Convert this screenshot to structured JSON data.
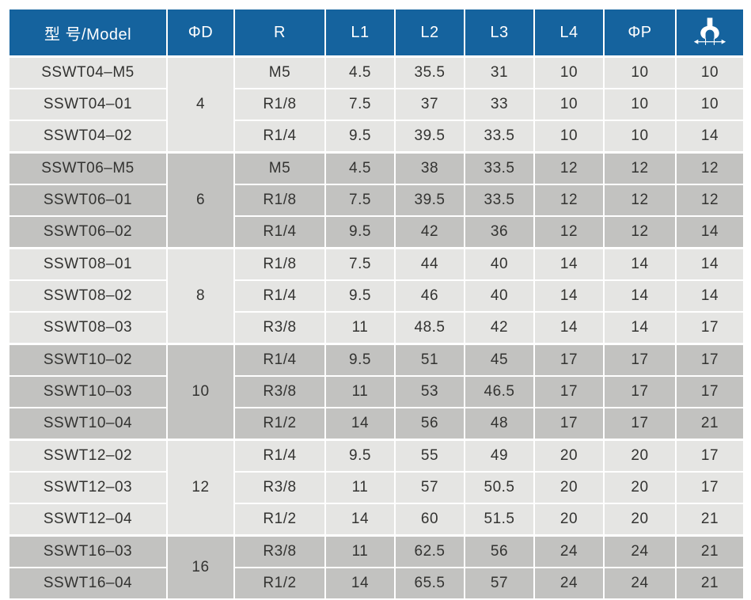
{
  "header": {
    "columns": [
      {
        "label": "型 号/Model"
      },
      {
        "label": "ΦD"
      },
      {
        "label": "R"
      },
      {
        "label": "L1"
      },
      {
        "label": "L2"
      },
      {
        "label": "L3"
      },
      {
        "label": "L4"
      },
      {
        "label": "ΦP"
      },
      {
        "icon": "wrench-size-icon"
      }
    ]
  },
  "colors": {
    "header_bg": "#15639e",
    "header_text": "#ffffff",
    "group_light_bg": "#e5e5e3",
    "group_dark_bg": "#c2c2c0",
    "cell_text": "#333331",
    "grid_lines": "#ffffff",
    "page_bg": "#ffffff"
  },
  "table": {
    "groups": [
      {
        "phi_d": "4",
        "rows": [
          {
            "model": "SSWT04–M5",
            "r": "M5",
            "l1": "4.5",
            "l2": "35.5",
            "l3": "31",
            "l4": "10",
            "phi_p": "10",
            "wrench": "10"
          },
          {
            "model": "SSWT04–01",
            "r": "R1/8",
            "l1": "7.5",
            "l2": "37",
            "l3": "33",
            "l4": "10",
            "phi_p": "10",
            "wrench": "10"
          },
          {
            "model": "SSWT04–02",
            "r": "R1/4",
            "l1": "9.5",
            "l2": "39.5",
            "l3": "33.5",
            "l4": "10",
            "phi_p": "10",
            "wrench": "14"
          }
        ]
      },
      {
        "phi_d": "6",
        "rows": [
          {
            "model": "SSWT06–M5",
            "r": "M5",
            "l1": "4.5",
            "l2": "38",
            "l3": "33.5",
            "l4": "12",
            "phi_p": "12",
            "wrench": "12"
          },
          {
            "model": "SSWT06–01",
            "r": "R1/8",
            "l1": "7.5",
            "l2": "39.5",
            "l3": "33.5",
            "l4": "12",
            "phi_p": "12",
            "wrench": "12"
          },
          {
            "model": "SSWT06–02",
            "r": "R1/4",
            "l1": "9.5",
            "l2": "42",
            "l3": "36",
            "l4": "12",
            "phi_p": "12",
            "wrench": "14"
          }
        ]
      },
      {
        "phi_d": "8",
        "rows": [
          {
            "model": "SSWT08–01",
            "r": "R1/8",
            "l1": "7.5",
            "l2": "44",
            "l3": "40",
            "l4": "14",
            "phi_p": "14",
            "wrench": "14"
          },
          {
            "model": "SSWT08–02",
            "r": "R1/4",
            "l1": "9.5",
            "l2": "46",
            "l3": "40",
            "l4": "14",
            "phi_p": "14",
            "wrench": "14"
          },
          {
            "model": "SSWT08–03",
            "r": "R3/8",
            "l1": "11",
            "l2": "48.5",
            "l3": "42",
            "l4": "14",
            "phi_p": "14",
            "wrench": "17"
          }
        ]
      },
      {
        "phi_d": "10",
        "rows": [
          {
            "model": "SSWT10–02",
            "r": "R1/4",
            "l1": "9.5",
            "l2": "51",
            "l3": "45",
            "l4": "17",
            "phi_p": "17",
            "wrench": "17"
          },
          {
            "model": "SSWT10–03",
            "r": "R3/8",
            "l1": "11",
            "l2": "53",
            "l3": "46.5",
            "l4": "17",
            "phi_p": "17",
            "wrench": "17"
          },
          {
            "model": "SSWT10–04",
            "r": "R1/2",
            "l1": "14",
            "l2": "56",
            "l3": "48",
            "l4": "17",
            "phi_p": "17",
            "wrench": "21"
          }
        ]
      },
      {
        "phi_d": "12",
        "rows": [
          {
            "model": "SSWT12–02",
            "r": "R1/4",
            "l1": "9.5",
            "l2": "55",
            "l3": "49",
            "l4": "20",
            "phi_p": "20",
            "wrench": "17"
          },
          {
            "model": "SSWT12–03",
            "r": "R3/8",
            "l1": "11",
            "l2": "57",
            "l3": "50.5",
            "l4": "20",
            "phi_p": "20",
            "wrench": "17"
          },
          {
            "model": "SSWT12–04",
            "r": "R1/2",
            "l1": "14",
            "l2": "60",
            "l3": "51.5",
            "l4": "20",
            "phi_p": "20",
            "wrench": "21"
          }
        ]
      },
      {
        "phi_d": "16",
        "rows": [
          {
            "model": "SSWT16–03",
            "r": "R3/8",
            "l1": "11",
            "l2": "62.5",
            "l3": "56",
            "l4": "24",
            "phi_p": "24",
            "wrench": "21"
          },
          {
            "model": "SSWT16–04",
            "r": "R1/2",
            "l1": "14",
            "l2": "65.5",
            "l3": "57",
            "l4": "24",
            "phi_p": "24",
            "wrench": "21"
          }
        ]
      }
    ]
  }
}
